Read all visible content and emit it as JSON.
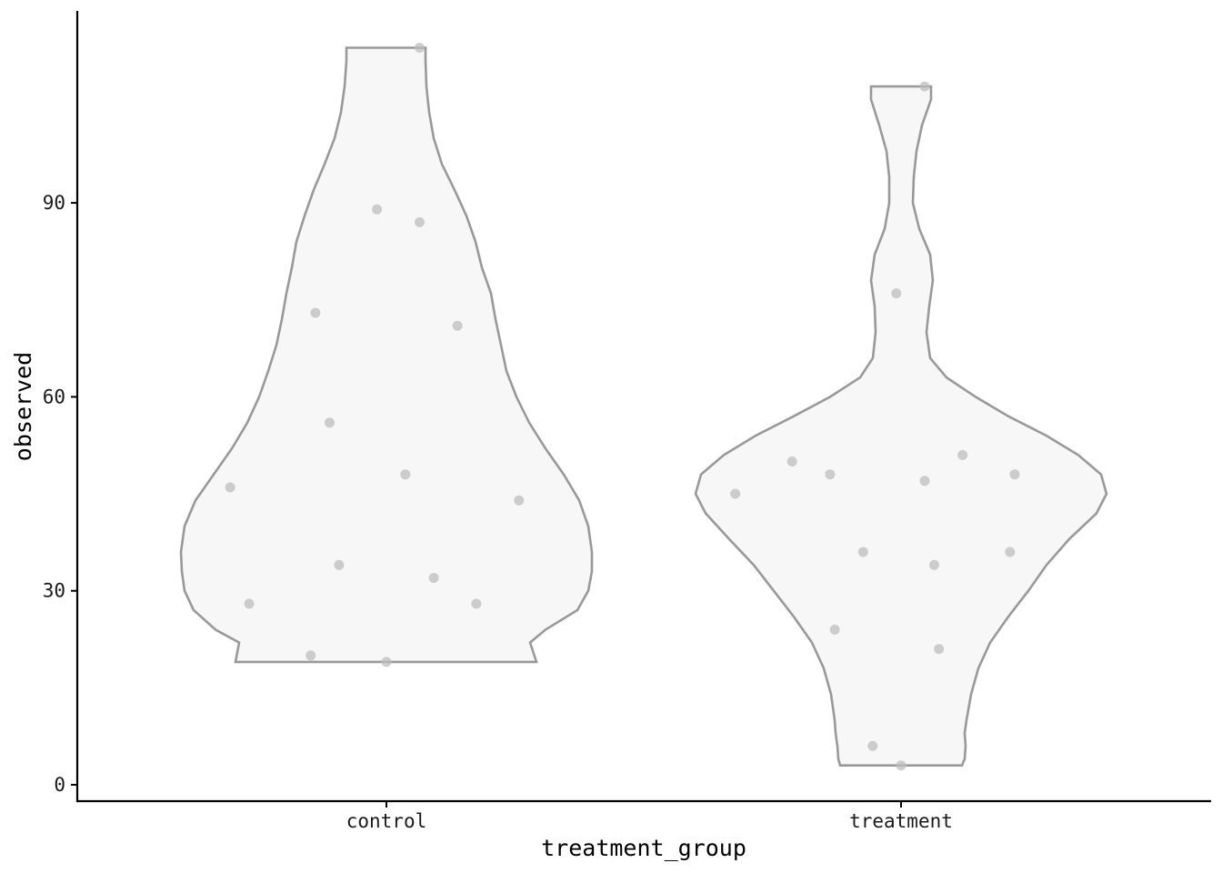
{
  "chart_data": {
    "type": "violin",
    "xlabel": "treatment_group",
    "ylabel": "observed",
    "categories": [
      "control",
      "treatment"
    ],
    "y_ticks": [
      0,
      30,
      60,
      90
    ],
    "ylim": [
      -2.5,
      120.5
    ],
    "grid": false,
    "fill_color": "#f7f7f7",
    "outline_color": "#999999",
    "point_color": "#bdbdbd",
    "violins": [
      {
        "category": "control",
        "range": [
          19,
          114
        ],
        "profile": [
          [
            19,
            164
          ],
          [
            22,
            126
          ],
          [
            26,
            108
          ],
          [
            30,
            99
          ],
          [
            35,
            96
          ],
          [
            40,
            93
          ],
          [
            45,
            83
          ],
          [
            50,
            68
          ],
          [
            55,
            55
          ],
          [
            60,
            47
          ],
          [
            65,
            41
          ],
          [
            70,
            38
          ],
          [
            75,
            35
          ],
          [
            80,
            31
          ],
          [
            85,
            25
          ],
          [
            90,
            17
          ],
          [
            95,
            4
          ],
          [
            100,
            -1
          ],
          [
            105,
            -11
          ],
          [
            110,
            -29
          ],
          [
            114,
            -41
          ]
        ],
        "right_extra": [
          [
            19,
            0
          ],
          [
            22,
            0
          ],
          [
            26,
            0
          ],
          [
            30,
            0
          ],
          [
            35,
            0
          ],
          [
            40,
            0
          ],
          [
            45,
            0
          ],
          [
            50,
            0
          ],
          [
            55,
            0
          ],
          [
            60,
            0
          ],
          [
            65,
            0
          ],
          [
            70,
            0
          ],
          [
            75,
            0
          ],
          [
            80,
            0
          ],
          [
            85,
            0
          ],
          [
            90,
            0
          ],
          [
            95,
            0
          ],
          [
            100,
            0
          ],
          [
            105,
            0
          ],
          [
            110,
            0
          ],
          [
            114,
            0
          ]
        ],
        "points": [
          {
            "jitter": -0.33,
            "y": 46
          },
          {
            "jitter": -0.29,
            "y": 28
          },
          {
            "jitter": -0.15,
            "y": 73
          },
          {
            "jitter": -0.16,
            "y": 20
          },
          {
            "jitter": -0.12,
            "y": 56
          },
          {
            "jitter": -0.1,
            "y": 34
          },
          {
            "jitter": -0.02,
            "y": 89
          },
          {
            "jitter": 0.0,
            "y": 19
          },
          {
            "jitter": 0.04,
            "y": 48
          },
          {
            "jitter": 0.07,
            "y": 114
          },
          {
            "jitter": 0.07,
            "y": 87
          },
          {
            "jitter": 0.1,
            "y": 32
          },
          {
            "jitter": 0.15,
            "y": 71
          },
          {
            "jitter": 0.19,
            "y": 28
          },
          {
            "jitter": 0.28,
            "y": 44
          }
        ]
      },
      {
        "category": "treatment",
        "range": [
          3,
          108
        ],
        "profile": [],
        "points": [
          {
            "jitter": -0.35,
            "y": 45
          },
          {
            "jitter": -0.23,
            "y": 50
          },
          {
            "jitter": -0.15,
            "y": 48
          },
          {
            "jitter": -0.14,
            "y": 24
          },
          {
            "jitter": -0.08,
            "y": 36
          },
          {
            "jitter": -0.06,
            "y": 6
          },
          {
            "jitter": -0.01,
            "y": 76
          },
          {
            "jitter": 0.0,
            "y": 3
          },
          {
            "jitter": 0.05,
            "y": 108
          },
          {
            "jitter": 0.05,
            "y": 47
          },
          {
            "jitter": 0.07,
            "y": 34
          },
          {
            "jitter": 0.08,
            "y": 21
          },
          {
            "jitter": 0.13,
            "y": 51
          },
          {
            "jitter": 0.23,
            "y": 36
          },
          {
            "jitter": 0.24,
            "y": 48
          }
        ]
      }
    ]
  }
}
